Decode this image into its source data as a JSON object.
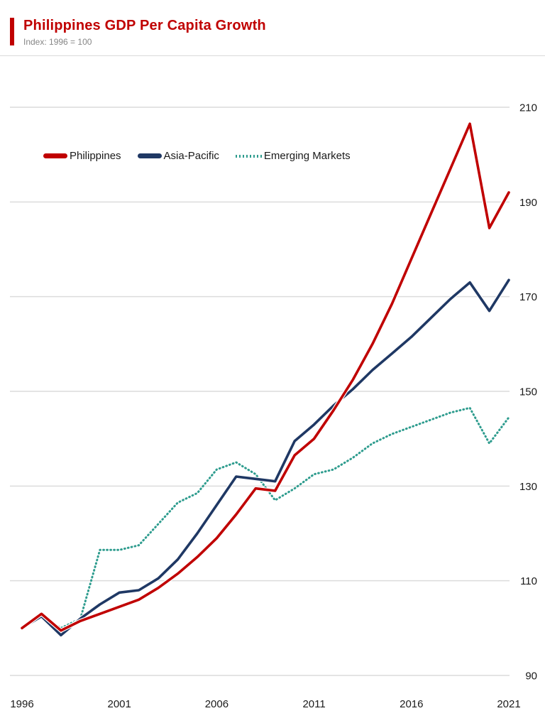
{
  "header": {
    "title": "Philippines GDP Per Capita Growth",
    "subtitle": "Index: 1996 = 100",
    "accent_color": "#c00000"
  },
  "legend": {
    "items": [
      {
        "label": "Philippines"
      },
      {
        "label": "Asia-Pacific"
      },
      {
        "label": "Emerging Markets"
      }
    ]
  },
  "chart_data": {
    "type": "line",
    "title": "Philippines GDP Per Capita Growth",
    "subtitle": "Index: 1996 = 100",
    "xlabel": "",
    "ylabel": "",
    "xlim": [
      1996,
      2021
    ],
    "ylim": [
      90,
      210
    ],
    "xticks": [
      1996,
      2001,
      2006,
      2011,
      2016,
      2021
    ],
    "yticks": [
      90,
      110,
      130,
      150,
      170,
      190,
      210
    ],
    "grid": "horizontal",
    "legend_position": "top-left-inside",
    "grid_color": "#dcdcdc",
    "tick_label_color": "#1a1a1a",
    "x": [
      1996,
      1997,
      1998,
      1999,
      2000,
      2001,
      2002,
      2003,
      2004,
      2005,
      2006,
      2007,
      2008,
      2009,
      2010,
      2011,
      2012,
      2013,
      2014,
      2015,
      2016,
      2017,
      2018,
      2019,
      2020,
      2021
    ],
    "series": [
      {
        "name": "Philippines",
        "color": "#c00000",
        "style": "solid",
        "values": [
          100,
          103,
          99.5,
          101.5,
          103,
          104.5,
          106,
          108.5,
          111.5,
          115,
          119,
          124,
          129.5,
          129,
          136.5,
          140,
          146,
          152.5,
          160,
          168.5,
          178,
          187.5,
          197,
          206.5,
          184.5,
          192
        ]
      },
      {
        "name": "Asia-Pacific",
        "color": "#1f3864",
        "style": "solid",
        "values": [
          100,
          102.5,
          98.5,
          102,
          105,
          107.5,
          108,
          110.5,
          114.5,
          120,
          126,
          132,
          131.5,
          131,
          139.5,
          143,
          147,
          150.5,
          154.5,
          158,
          161.5,
          165.5,
          169.5,
          173,
          167,
          173.5
        ]
      },
      {
        "name": "Emerging Markets",
        "color": "#2e9c8e",
        "style": "dotted",
        "values": [
          100,
          102.5,
          100,
          102,
          116.5,
          116.5,
          117.5,
          122,
          126.5,
          128.5,
          133.5,
          135,
          132.5,
          127,
          129.5,
          132.5,
          133.5,
          136,
          139,
          141,
          142.5,
          144,
          145.5,
          146.5,
          139,
          144.5
        ]
      }
    ]
  }
}
